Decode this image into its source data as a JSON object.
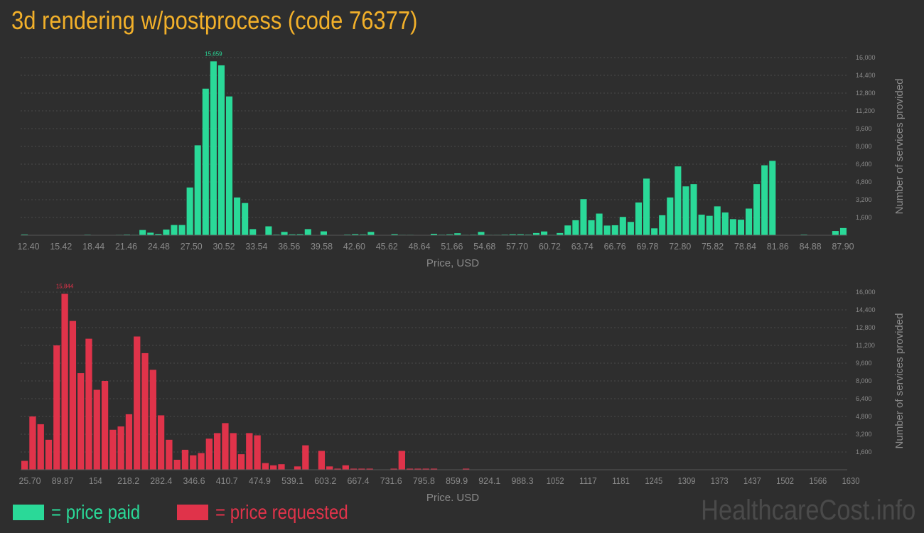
{
  "title": "3d rendering w/postprocess (code 76377)",
  "watermark": "HealthcareCost.info",
  "legend": {
    "paid": {
      "label": "= price paid",
      "color": "#2ad998"
    },
    "requested": {
      "label": "= price requested",
      "color": "#e0334a"
    }
  },
  "colors": {
    "background": "#2e2e2e",
    "axis_text": "#8a8a8a",
    "grid": "#4a4a4a"
  },
  "chart_data": [
    {
      "type": "bar",
      "name": "price paid",
      "color": "#2ad998",
      "xlabel": "Price, USD",
      "ylabel": "Number of services provided",
      "ylim": [
        0,
        16000
      ],
      "yticks": [
        1600,
        3200,
        4800,
        6400,
        8000,
        9600,
        11200,
        12800,
        14400,
        16000
      ],
      "ytick_labels": [
        "1,600",
        "3,200",
        "4,800",
        "6,400",
        "8,000",
        "9,600",
        "11,200",
        "12,800",
        "14,400",
        "16,000"
      ],
      "xtick_labels": [
        "12.40",
        "15.42",
        "18.44",
        "21.46",
        "24.48",
        "27.50",
        "30.52",
        "33.54",
        "36.56",
        "39.58",
        "42.60",
        "45.62",
        "48.64",
        "51.66",
        "54.68",
        "57.70",
        "60.72",
        "63.74",
        "66.76",
        "69.78",
        "72.80",
        "75.82",
        "78.84",
        "81.86",
        "84.88",
        "87.90"
      ],
      "peak_label": "15,659",
      "peak_index": 24,
      "values": [
        70,
        0,
        0,
        0,
        0,
        0,
        0,
        20,
        50,
        20,
        0,
        0,
        40,
        60,
        40,
        470,
        230,
        110,
        510,
        920,
        920,
        4300,
        8100,
        13200,
        15659,
        15300,
        12500,
        3400,
        2900,
        550,
        0,
        800,
        60,
        300,
        80,
        90,
        550,
        0,
        350,
        0,
        0,
        60,
        100,
        70,
        300,
        0,
        0,
        100,
        40,
        40,
        30,
        0,
        130,
        50,
        80,
        180,
        40,
        50,
        300,
        40,
        40,
        60,
        90,
        90,
        60,
        200,
        340,
        40,
        200,
        880,
        1350,
        3250,
        1350,
        1950,
        870,
        900,
        1650,
        1200,
        2950,
        5100,
        620,
        1800,
        3400,
        6200,
        4400,
        4600,
        1850,
        1750,
        2600,
        2050,
        1450,
        1400,
        2400,
        4600,
        6300,
        6700,
        0,
        0,
        0,
        60,
        0,
        0,
        0,
        380,
        650
      ]
    },
    {
      "type": "bar",
      "name": "price requested",
      "color": "#e0334a",
      "xlabel": "Price, USD",
      "ylabel": "Number of services provided",
      "ylim": [
        0,
        16000
      ],
      "yticks": [
        1600,
        3200,
        4800,
        6400,
        8000,
        9600,
        11200,
        12800,
        14400,
        16000
      ],
      "ytick_labels": [
        "1,600",
        "3,200",
        "4,800",
        "6,400",
        "8,000",
        "9,600",
        "11,200",
        "12,800",
        "14,400",
        "16,000"
      ],
      "xtick_labels": [
        "25.70",
        "89.87",
        "154",
        "218.2",
        "282.4",
        "346.6",
        "410.7",
        "474.9",
        "539.1",
        "603.2",
        "667.4",
        "731.6",
        "795.8",
        "859.9",
        "924.1",
        "988.3",
        "1052",
        "1117",
        "1181",
        "1245",
        "1309",
        "1373",
        "1437",
        "1502",
        "1566",
        "1630"
      ],
      "peak_label": "15,844",
      "peak_index": 5,
      "values": [
        800,
        4800,
        4100,
        2700,
        11200,
        15844,
        13400,
        8700,
        11800,
        7200,
        8000,
        3600,
        3900,
        5000,
        12000,
        10500,
        9000,
        4900,
        2700,
        900,
        1800,
        1300,
        1500,
        2800,
        3300,
        4200,
        3300,
        1400,
        3300,
        3100,
        600,
        400,
        500,
        0,
        300,
        2200,
        0,
        1700,
        300,
        100,
        400,
        100,
        100,
        100,
        0,
        0,
        100,
        1700,
        100,
        100,
        100,
        100,
        0,
        0,
        0,
        100,
        0,
        0,
        0,
        0,
        0,
        0,
        0,
        0,
        0,
        0,
        0,
        0,
        0,
        0,
        0,
        0,
        0,
        0,
        0,
        0,
        0,
        0,
        0,
        0,
        0,
        0,
        0,
        0,
        0,
        0,
        0,
        0,
        0,
        0,
        0,
        0,
        0,
        0,
        0,
        0,
        0,
        0,
        0,
        0,
        0,
        0,
        0
      ]
    }
  ]
}
